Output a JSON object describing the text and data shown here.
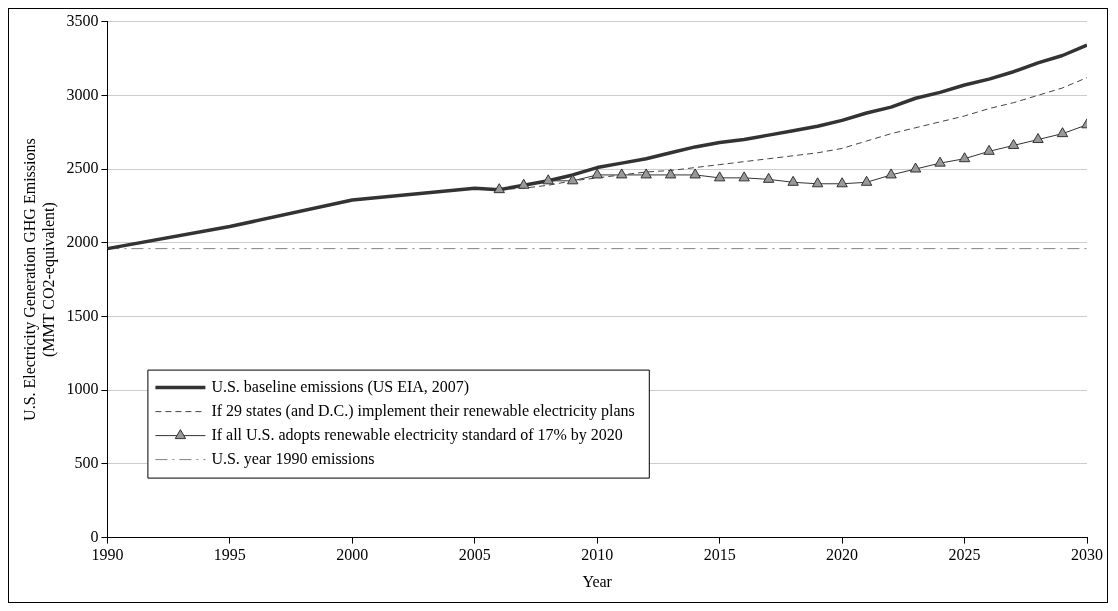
{
  "chart_data": {
    "type": "line",
    "xlabel": "Year",
    "ylabel": "U.S. Electricity Generation GHG Emissions\n(MMT CO2-equivalent)",
    "xlim": [
      1990,
      2030
    ],
    "xticks": [
      1990,
      1995,
      2000,
      2005,
      2010,
      2015,
      2020,
      2025,
      2030
    ],
    "ylim": [
      0,
      3500
    ],
    "yticks": [
      0,
      500,
      1000,
      1500,
      2000,
      2500,
      3000,
      3500
    ],
    "grid": "y",
    "legend": "bottom left",
    "series": [
      {
        "name": "U.S. baseline emissions (US EIA, 2007)",
        "color": "#333333",
        "marker": "none",
        "line_style": "solid",
        "x": [
          1990,
          1995,
          2000,
          2005,
          2006,
          2007,
          2008,
          2009,
          2010,
          2011,
          2012,
          2013,
          2014,
          2015,
          2016,
          2017,
          2018,
          2019,
          2020,
          2021,
          2022,
          2023,
          2024,
          2025,
          2026,
          2027,
          2028,
          2029,
          2030
        ],
        "values": [
          1960,
          2110,
          2290,
          2370,
          2360,
          2390,
          2420,
          2460,
          2510,
          2540,
          2570,
          2610,
          2650,
          2680,
          2700,
          2730,
          2760,
          2790,
          2830,
          2880,
          2920,
          2980,
          3020,
          3070,
          3110,
          3160,
          3220,
          3270,
          3340
        ]
      },
      {
        "name": "If 29 states (and D.C.) implement their renewable electricity plans",
        "color": "#444444",
        "marker": "none",
        "line_style": "dashed",
        "x": [
          2006,
          2007,
          2008,
          2009,
          2010,
          2011,
          2012,
          2013,
          2014,
          2015,
          2016,
          2017,
          2018,
          2019,
          2020,
          2021,
          2022,
          2023,
          2024,
          2025,
          2026,
          2027,
          2028,
          2029,
          2030
        ],
        "values": [
          2360,
          2370,
          2390,
          2420,
          2440,
          2460,
          2480,
          2490,
          2510,
          2530,
          2550,
          2570,
          2590,
          2610,
          2640,
          2690,
          2740,
          2780,
          2820,
          2860,
          2910,
          2950,
          3000,
          3050,
          3120
        ]
      },
      {
        "name": "If all U.S. adopts renewable electricity standard of 17% by 2020",
        "color": "#333333",
        "marker": "triangle",
        "line_style": "solid",
        "x": [
          2006,
          2007,
          2008,
          2009,
          2010,
          2011,
          2012,
          2013,
          2014,
          2015,
          2016,
          2017,
          2018,
          2019,
          2020,
          2021,
          2022,
          2023,
          2024,
          2025,
          2026,
          2027,
          2028,
          2029,
          2030
        ],
        "values": [
          2360,
          2390,
          2420,
          2420,
          2460,
          2460,
          2460,
          2460,
          2460,
          2440,
          2440,
          2430,
          2410,
          2400,
          2400,
          2410,
          2460,
          2500,
          2540,
          2570,
          2620,
          2660,
          2700,
          2740,
          2800
        ]
      },
      {
        "name": "U.S. year 1990 emissions",
        "color": "#808080",
        "marker": "none",
        "line_style": "dashdot",
        "x": [
          1990,
          2030
        ],
        "values": [
          1960,
          1960
        ]
      }
    ]
  }
}
